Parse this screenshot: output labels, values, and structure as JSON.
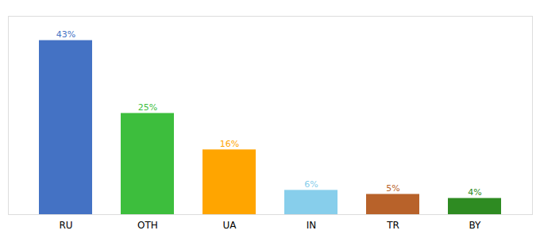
{
  "chart_data": {
    "type": "bar",
    "categories": [
      "RU",
      "OTH",
      "UA",
      "IN",
      "TR",
      "BY"
    ],
    "values": [
      43,
      25,
      16,
      6,
      5,
      4
    ],
    "value_labels": [
      "43%",
      "25%",
      "16%",
      "6%",
      "5%",
      "4%"
    ],
    "colors": [
      "#4472C4",
      "#3DBE3D",
      "#FFA500",
      "#87CEEB",
      "#B8622A",
      "#2E8B22"
    ],
    "ylim": [
      0,
      49
    ],
    "grid": false,
    "data_labels": true,
    "tick_labels": "x"
  }
}
